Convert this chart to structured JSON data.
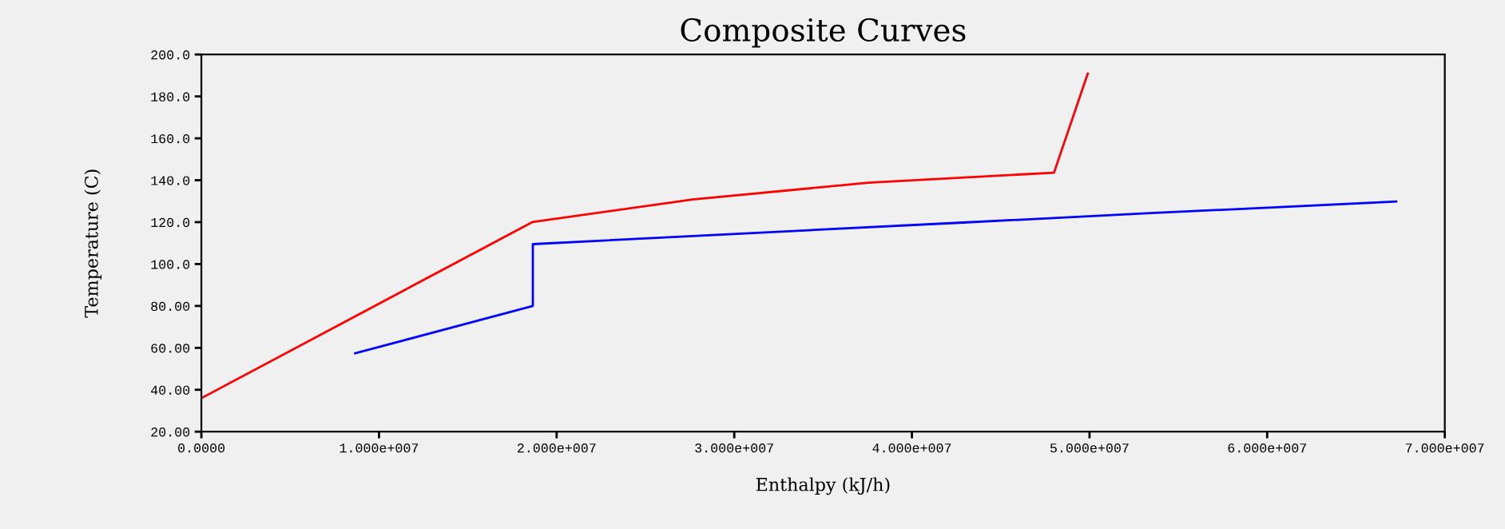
{
  "chart_data": {
    "type": "line",
    "title": "Composite Curves",
    "xlabel": "Enthalpy (kJ/h)",
    "ylabel": "Temperature (C)",
    "xlim": [
      0,
      70000000
    ],
    "ylim": [
      20,
      200
    ],
    "xticks": [
      {
        "value": 0,
        "label": "0.0000"
      },
      {
        "value": 10000000,
        "label": "1.000e+007"
      },
      {
        "value": 20000000,
        "label": "2.000e+007"
      },
      {
        "value": 30000000,
        "label": "3.000e+007"
      },
      {
        "value": 40000000,
        "label": "4.000e+007"
      },
      {
        "value": 50000000,
        "label": "5.000e+007"
      },
      {
        "value": 60000000,
        "label": "6.000e+007"
      },
      {
        "value": 70000000,
        "label": "7.000e+007"
      }
    ],
    "yticks": [
      {
        "value": 20,
        "label": "20.00"
      },
      {
        "value": 40,
        "label": "40.00"
      },
      {
        "value": 60,
        "label": "60.00"
      },
      {
        "value": 80,
        "label": "80.00"
      },
      {
        "value": 100,
        "label": "100.0"
      },
      {
        "value": 120,
        "label": "120.0"
      },
      {
        "value": 140,
        "label": "140.0"
      },
      {
        "value": 160,
        "label": "160.0"
      },
      {
        "value": 180,
        "label": "180.0"
      },
      {
        "value": 200,
        "label": "200.0"
      }
    ],
    "grid": false,
    "marker": "none",
    "line_style": "solid",
    "series": [
      {
        "color": "#ff0000",
        "x": [
          0,
          18630000,
          27650000,
          37560000,
          48000000,
          49900000
        ],
        "values": [
          36,
          120,
          130.8,
          138.8,
          143.6,
          190.9
        ]
      },
      {
        "color": "#0000ff",
        "x": [
          8660000,
          18660000,
          18660000,
          34560000,
          42660000,
          53460000,
          67260000
        ],
        "values": [
          57.4,
          80,
          109.5,
          116.3,
          119.7,
          124.3,
          129.8
        ]
      }
    ]
  }
}
